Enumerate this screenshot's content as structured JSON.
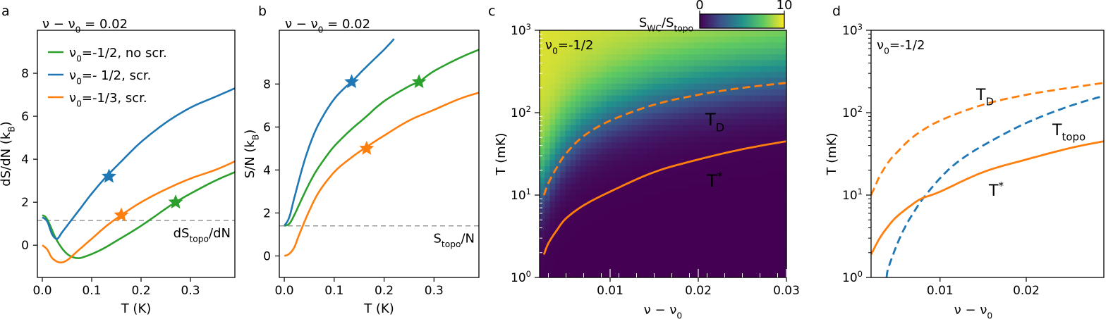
{
  "chart_data": [
    {
      "panel": "a",
      "type": "line",
      "title": "ν − ν₀ = 0.02",
      "xlabel": "T (K)",
      "ylabel": "dS/dN (k_B)",
      "ylabel_main": "dS/dN (k",
      "ylabel_sub": "B",
      "xlim": [
        -0.01,
        0.39
      ],
      "ylim": [
        -1.5,
        10
      ],
      "xticks": [
        "0.0",
        "0.1",
        "0.2",
        "0.3"
      ],
      "xtick_values": [
        0.0,
        0.1,
        0.2,
        0.3
      ],
      "yticks": [
        "0",
        "2",
        "4",
        "6",
        "8"
      ],
      "ytick_values": [
        0,
        2,
        4,
        6,
        8
      ],
      "reference": {
        "value": 1.15,
        "label_main": "dS",
        "label_sub": "topo",
        "label_end": "/dN",
        "color": "#999999"
      },
      "legend": {
        "location": "top-left",
        "entries": [
          {
            "text": "ν₀=-1/2, no scr.",
            "color": "#2ca02c"
          },
          {
            "text": "ν₀=- 1/2, scr.",
            "color": "#1f77b4"
          },
          {
            "text": "ν₀=-1/3, scr.",
            "color": "#ff7f0e"
          }
        ]
      },
      "series": [
        {
          "color": "#2ca02c",
          "x": [
            0.0,
            0.01,
            0.03,
            0.05,
            0.07,
            0.09,
            0.12,
            0.15,
            0.2,
            0.25,
            0.27,
            0.3,
            0.35,
            0.39
          ],
          "y": [
            1.4,
            1.2,
            0.2,
            -0.4,
            -0.6,
            -0.5,
            -0.2,
            0.2,
            0.9,
            1.7,
            2.0,
            2.4,
            3.0,
            3.4
          ],
          "star": [
            0.27,
            2.0
          ]
        },
        {
          "color": "#1f77b4",
          "x": [
            0.0,
            0.01,
            0.02,
            0.03,
            0.04,
            0.06,
            0.08,
            0.1,
            0.13,
            0.16,
            0.2,
            0.25,
            0.3,
            0.35,
            0.39
          ],
          "y": [
            1.3,
            1.1,
            0.5,
            0.3,
            0.6,
            1.2,
            1.8,
            2.4,
            3.2,
            3.9,
            4.8,
            5.7,
            6.4,
            6.9,
            7.3
          ],
          "star": [
            0.135,
            3.2
          ]
        },
        {
          "color": "#ff7f0e",
          "x": [
            0.0,
            0.01,
            0.02,
            0.035,
            0.05,
            0.07,
            0.1,
            0.13,
            0.16,
            0.2,
            0.25,
            0.3,
            0.35,
            0.39
          ],
          "y": [
            0.0,
            -0.2,
            -0.6,
            -0.8,
            -0.7,
            -0.3,
            0.3,
            0.9,
            1.4,
            2.0,
            2.6,
            3.1,
            3.5,
            3.9
          ],
          "star": [
            0.16,
            1.4
          ]
        }
      ]
    },
    {
      "panel": "b",
      "type": "line",
      "title": "ν − ν₀ = 0.02",
      "xlabel": "T (K)",
      "ylabel": "S/N (k_B)",
      "ylabel_main": "S/N (k",
      "ylabel_sub": "B",
      "xlim": [
        -0.01,
        0.39
      ],
      "ylim": [
        -1.0,
        10.5
      ],
      "xticks": [
        "0.0",
        "0.1",
        "0.2",
        "0.3"
      ],
      "xtick_values": [
        0.0,
        0.1,
        0.2,
        0.3
      ],
      "yticks": [
        "0",
        "2",
        "4",
        "6",
        "8"
      ],
      "ytick_values": [
        0,
        2,
        4,
        6,
        8
      ],
      "reference": {
        "value": 1.4,
        "label_main": "S",
        "label_sub": "topo",
        "label_end": "/N",
        "color": "#999999"
      },
      "series": [
        {
          "color": "#2ca02c",
          "x": [
            0.0,
            0.01,
            0.02,
            0.04,
            0.06,
            0.08,
            0.1,
            0.13,
            0.16,
            0.2,
            0.25,
            0.27,
            0.3,
            0.35,
            0.39
          ],
          "y": [
            1.4,
            1.5,
            1.9,
            2.9,
            3.8,
            4.5,
            5.1,
            5.8,
            6.4,
            7.2,
            7.9,
            8.1,
            8.6,
            9.2,
            9.6
          ],
          "star": [
            0.27,
            8.1
          ]
        },
        {
          "color": "#1f77b4",
          "x": [
            0.0,
            0.01,
            0.02,
            0.04,
            0.06,
            0.08,
            0.1,
            0.12,
            0.135,
            0.16,
            0.2,
            0.22
          ],
          "y": [
            1.4,
            1.8,
            2.7,
            4.4,
            5.7,
            6.6,
            7.3,
            7.8,
            8.1,
            8.7,
            9.6,
            10.1
          ],
          "star": [
            0.135,
            8.1
          ]
        },
        {
          "color": "#ff7f0e",
          "x": [
            0.0,
            0.01,
            0.02,
            0.03,
            0.05,
            0.07,
            0.1,
            0.13,
            0.16,
            0.2,
            0.25,
            0.3,
            0.35,
            0.39
          ],
          "y": [
            0.0,
            0.1,
            0.4,
            1.0,
            2.1,
            3.0,
            3.9,
            4.5,
            5.0,
            5.6,
            6.3,
            6.8,
            7.3,
            7.6
          ],
          "star": [
            0.165,
            5.0
          ]
        }
      ]
    },
    {
      "panel": "c",
      "type": "heatmap",
      "annotation": "ν₀=-1/2",
      "xlabel": "ν − ν₀",
      "ylabel": "T (mK)",
      "xlim": [
        0.002,
        0.03
      ],
      "ylim": [
        1,
        1000
      ],
      "yscale": "log",
      "xticks": [
        "0.01",
        "0.02",
        "0.03"
      ],
      "xtick_values": [
        0.01,
        0.02,
        0.03
      ],
      "yticks": [
        "10^0",
        "10^1",
        "10^2",
        "10^3"
      ],
      "colorbar": {
        "label": "S_WC/S_topo",
        "label_main": "S",
        "label_sub1": "WC",
        "label_mid": "/S",
        "label_sub2": "topo",
        "min": 0,
        "max": 10,
        "tick_labels": [
          "0",
          "10"
        ]
      },
      "series": [
        {
          "name": "T_D",
          "label_main": "T",
          "label_sub": "D",
          "style": "dashed",
          "color": "#ff7f0e",
          "x": [
            0.0025,
            0.003,
            0.004,
            0.005,
            0.007,
            0.01,
            0.015,
            0.02,
            0.025,
            0.03
          ],
          "y": [
            10,
            14,
            22,
            32,
            52,
            80,
            125,
            165,
            200,
            230
          ]
        },
        {
          "name": "T*",
          "label_main": "T",
          "label_sup": "*",
          "style": "solid",
          "color": "#ff7f0e",
          "x": [
            0.0025,
            0.003,
            0.004,
            0.005,
            0.007,
            0.01,
            0.015,
            0.02,
            0.025,
            0.03
          ],
          "y": [
            1.9,
            2.6,
            3.8,
            5.2,
            7.5,
            11,
            19,
            27,
            36,
            45
          ]
        }
      ]
    },
    {
      "panel": "d",
      "type": "line",
      "annotation": "ν₀=-1/2",
      "xlabel": "ν − ν₀",
      "ylabel": "T (mK)",
      "xlim": [
        0.002,
        0.029
      ],
      "ylim": [
        1,
        1000
      ],
      "yscale": "log",
      "xticks": [
        "0.01",
        "0.02"
      ],
      "xtick_values": [
        0.01,
        0.02
      ],
      "yticks": [
        "10^0",
        "10^1",
        "10^2",
        "10^3"
      ],
      "series": [
        {
          "name": "T_D",
          "label_main": "T",
          "label_sub": "D",
          "style": "dashed",
          "color": "#ff7f0e",
          "x": [
            0.002,
            0.0025,
            0.003,
            0.004,
            0.005,
            0.007,
            0.01,
            0.015,
            0.02,
            0.025,
            0.029
          ],
          "y": [
            10,
            13,
            17,
            25,
            33,
            52,
            80,
            125,
            165,
            200,
            230
          ]
        },
        {
          "name": "T_topo",
          "label_main": "T",
          "label_sub": "topo",
          "style": "dashed",
          "color": "#1f77b4",
          "x": [
            0.0038,
            0.004,
            0.005,
            0.006,
            0.007,
            0.008,
            0.01,
            0.012,
            0.015,
            0.02,
            0.025,
            0.029
          ],
          "y": [
            1,
            1.3,
            2.5,
            4.2,
            6.3,
            9.0,
            16,
            25,
            40,
            75,
            120,
            160
          ]
        },
        {
          "name": "T*",
          "label_main": "T",
          "label_sup": "*",
          "style": "solid",
          "color": "#ff7f0e",
          "x": [
            0.002,
            0.003,
            0.004,
            0.005,
            0.007,
            0.008,
            0.01,
            0.015,
            0.02,
            0.025,
            0.029
          ],
          "y": [
            1.9,
            3.0,
            4.2,
            5.5,
            8.0,
            9.2,
            11,
            19,
            27,
            37,
            45
          ]
        }
      ]
    }
  ],
  "panel_labels": [
    "a",
    "b",
    "c",
    "d"
  ]
}
